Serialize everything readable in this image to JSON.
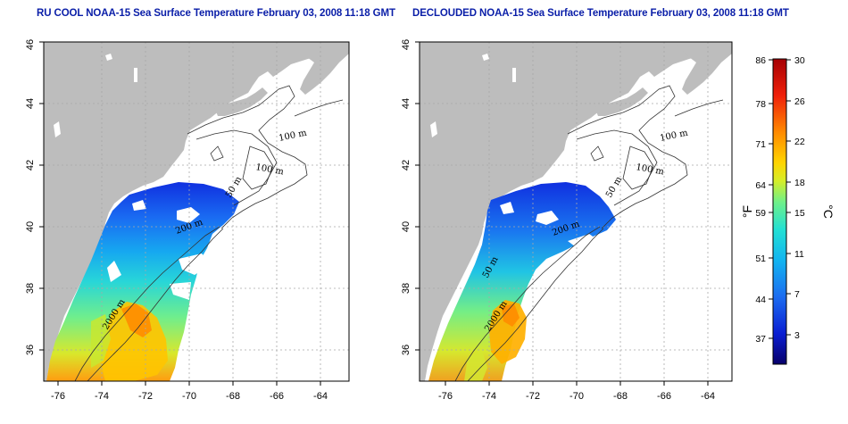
{
  "titles": {
    "left": "RU COOL NOAA-15 Sea Surface Temperature February 03, 2008 11:18 GMT",
    "right": "DECLOUDED NOAA-15 Sea Surface Temperature February 03, 2008 11:18 GMT"
  },
  "axes": {
    "lon_ticks": [
      "-76",
      "-74",
      "-72",
      "-70",
      "-68",
      "-66",
      "-64"
    ],
    "lat_ticks": [
      "36",
      "38",
      "40",
      "42",
      "44",
      "46"
    ],
    "lon_range": [
      -77.2,
      -62.8
    ],
    "lat_range": [
      35.0,
      46.0
    ]
  },
  "contour_labels": {
    "left": [
      "100 m",
      "100 m",
      "50 m",
      "200 m",
      "2000 m"
    ],
    "right": [
      "100 m",
      "100 m",
      "50 m",
      "200 m",
      "50 m",
      "2000 m"
    ]
  },
  "colorbar": {
    "fahrenheit": [
      "86",
      "78",
      "71",
      "64",
      "59",
      "51",
      "44",
      "37"
    ],
    "celsius": [
      "30",
      "26",
      "22",
      "18",
      "15",
      "11",
      "7",
      "3"
    ],
    "unit_f": "°F",
    "unit_c": "°C",
    "range_c": [
      0,
      30
    ],
    "colors": [
      "#08006a",
      "#0a1ed2",
      "#1c6cf0",
      "#12b4f0",
      "#22e0d4",
      "#6ef08a",
      "#d6ee28",
      "#ffd400",
      "#ff8a00",
      "#f0200a",
      "#a50004"
    ]
  }
}
